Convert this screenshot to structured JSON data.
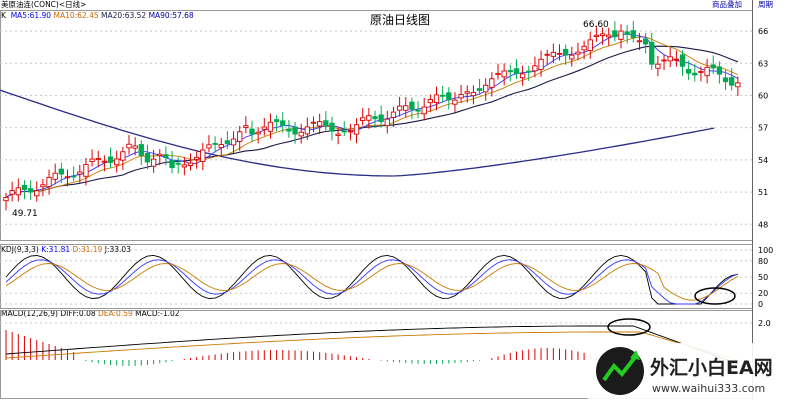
{
  "header": {
    "symbol": "美原油连(CONC)<日线>",
    "toolbar": {
      "add_label": "商品叠加",
      "cycle_label": "周期"
    }
  },
  "price_panel": {
    "title": "原油日线图",
    "indicator_name": "K",
    "ma": [
      {
        "label": "MA5:61.90",
        "color": "#0000ff"
      },
      {
        "label": "MA10:62.45",
        "color": "#cc6600"
      },
      {
        "label": "MA20:63.52",
        "color": "#1a1a4a"
      },
      {
        "label": "MA90:57.68",
        "color": "#0000aa"
      }
    ],
    "high_label": "66.60",
    "low_label": "49.71",
    "y_ticks": [
      "66",
      "63",
      "60",
      "57",
      "54",
      "51",
      "48"
    ]
  },
  "kdj_panel": {
    "name": "KDJ(9,3,3)",
    "k": "K:31.81",
    "d": "D:31.19",
    "j": "J:33.03",
    "y_ticks": [
      "100",
      "80",
      "50",
      "20",
      "0"
    ]
  },
  "macd_panel": {
    "name": "MACD(12,26,9)",
    "diff": "DIFF:0.08",
    "dea": "DEA:0.59",
    "macd": "MACD:-1.02",
    "y_ticks": [
      "2.0"
    ]
  },
  "colors": {
    "up": "#dd0000",
    "down": "#00aa55",
    "grid": "#c8c8c8",
    "ma90": "#2b2b88",
    "annotation": "#000000"
  },
  "watermark": {
    "brand": "外汇小白EA网",
    "url": "www.waihui333.com"
  }
}
